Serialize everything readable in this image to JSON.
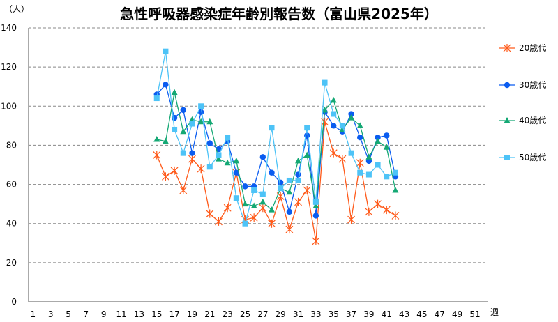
{
  "chart_data": {
    "type": "line",
    "title": "急性呼吸器感染症年齢別報告数（富山県2025年）",
    "ylabel": "（人）",
    "xlabel": "週",
    "ylim": [
      0,
      140
    ],
    "yticks": [
      0,
      20,
      40,
      60,
      80,
      100,
      120,
      140
    ],
    "xlim": [
      1,
      52
    ],
    "xticks": [
      1,
      3,
      5,
      7,
      9,
      11,
      13,
      15,
      17,
      19,
      21,
      23,
      25,
      27,
      29,
      31,
      33,
      35,
      37,
      39,
      41,
      43,
      45,
      47,
      49,
      51
    ],
    "grid": true,
    "legend_position": "right",
    "x": [
      15,
      16,
      17,
      18,
      19,
      20,
      21,
      22,
      23,
      24,
      25,
      26,
      27,
      28,
      29,
      30,
      31,
      32,
      33,
      34,
      35,
      36,
      37,
      38,
      39,
      40,
      41,
      42
    ],
    "series": [
      {
        "name": "20歳代",
        "color": "#ff5a1a",
        "marker": "star",
        "values": [
          75,
          64,
          67,
          57,
          73,
          68,
          45,
          41,
          48,
          66,
          42,
          43,
          48,
          40,
          54,
          37,
          51,
          57,
          31,
          92,
          76,
          73,
          42,
          71,
          46,
          50,
          47,
          44
        ]
      },
      {
        "name": "30歳代",
        "color": "#0a5cf0",
        "marker": "circle",
        "values": [
          106,
          111,
          94,
          98,
          76,
          97,
          81,
          78,
          82,
          66,
          59,
          59,
          74,
          66,
          61,
          46,
          65,
          85,
          44,
          97,
          90,
          87,
          96,
          84,
          72,
          84,
          85,
          64
        ]
      },
      {
        "name": "40歳代",
        "color": "#14a874",
        "marker": "triangle",
        "values": [
          83,
          82,
          107,
          87,
          93,
          92,
          92,
          73,
          71,
          72,
          50,
          49,
          51,
          47,
          58,
          56,
          72,
          75,
          49,
          98,
          103,
          88,
          94,
          90,
          74,
          82,
          79,
          57
        ]
      },
      {
        "name": "50歳代",
        "color": "#4dc3f7",
        "marker": "square",
        "values": [
          104,
          128,
          88,
          76,
          91,
          100,
          69,
          75,
          84,
          53,
          40,
          57,
          55,
          89,
          58,
          62,
          62,
          89,
          51,
          112,
          96,
          90,
          76,
          66,
          65,
          70,
          64,
          66
        ]
      }
    ]
  }
}
